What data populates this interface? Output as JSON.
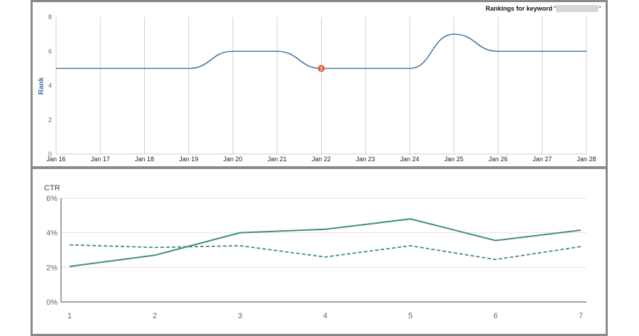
{
  "chart_data": [
    {
      "type": "line",
      "title": "Rankings for keyword '",
      "title_end": "'",
      "ylabel": "Rank",
      "ylim": [
        0,
        8
      ],
      "yticks": [
        0,
        2,
        4,
        6,
        8
      ],
      "categories": [
        "Jan 16",
        "Jan 17",
        "Jan 18",
        "Jan 19",
        "Jan 20",
        "Jan 21",
        "Jan 22",
        "Jan 23",
        "Jan 24",
        "Jan 25",
        "Jan 26",
        "Jan 27",
        "Jan 28"
      ],
      "series": [
        {
          "values": [
            5,
            5,
            5,
            5,
            6,
            6,
            5,
            5,
            5,
            7,
            6,
            6,
            6
          ],
          "color": "#4a78a8"
        }
      ],
      "annotation": {
        "category": "Jan 22",
        "value": 5,
        "marker": "!",
        "color": "#e8604c"
      },
      "grid": "vertical"
    },
    {
      "type": "line",
      "ylabel": "CTR",
      "ylim": [
        0,
        6
      ],
      "yticks": [
        "0%",
        "2%",
        "4%",
        "6%"
      ],
      "ytick_values": [
        0,
        2,
        4,
        6
      ],
      "categories": [
        "1",
        "2",
        "3",
        "4",
        "5",
        "6",
        "7"
      ],
      "series": [
        {
          "values": [
            2.05,
            2.7,
            4.0,
            4.2,
            4.8,
            3.55,
            4.15
          ],
          "style": "solid",
          "color": "#3f8f7e"
        },
        {
          "values": [
            3.3,
            3.15,
            3.25,
            2.6,
            3.25,
            2.45,
            3.2
          ],
          "style": "dashed",
          "color": "#3f8f7e"
        }
      ],
      "grid": "horizontal"
    }
  ]
}
